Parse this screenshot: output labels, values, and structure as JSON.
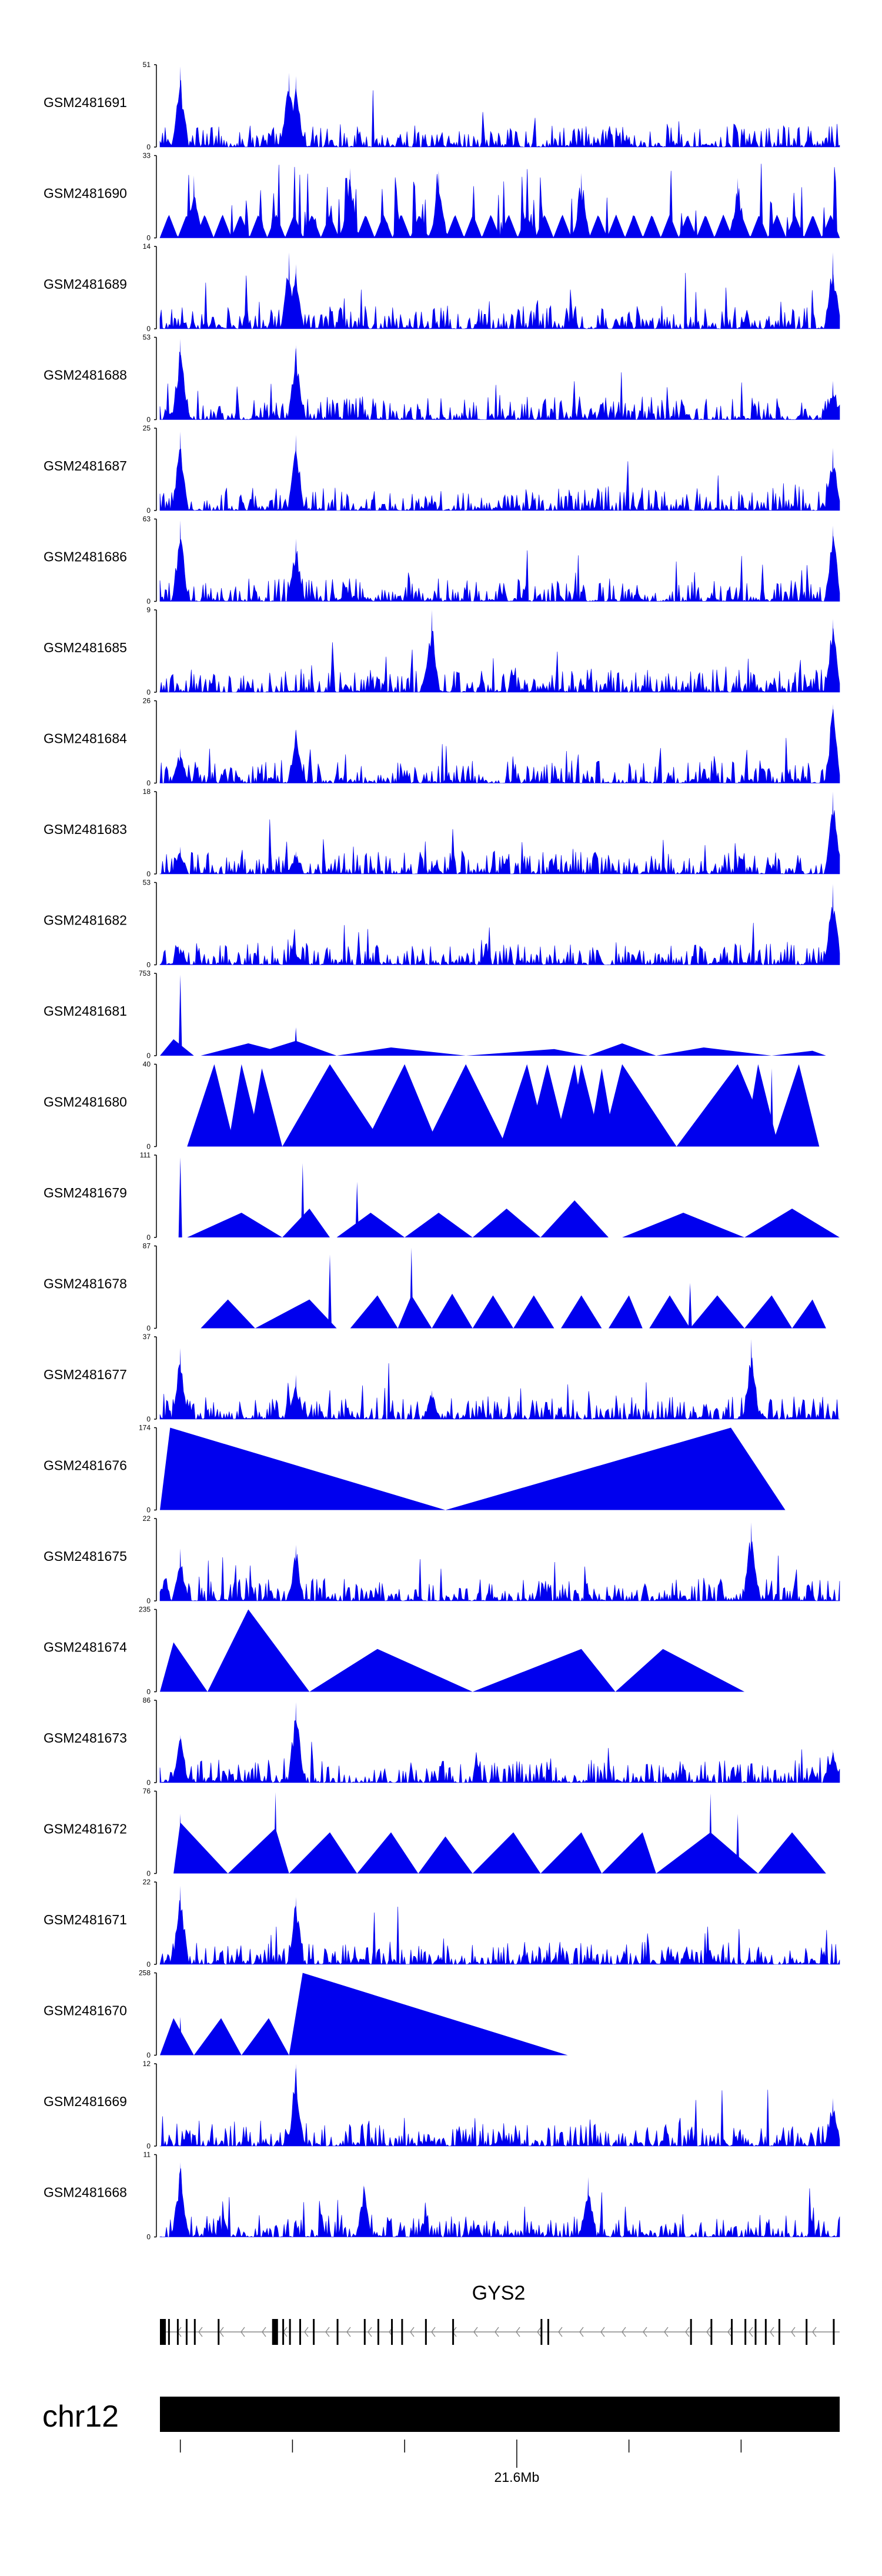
{
  "chart_data": {
    "type": "area",
    "title": "",
    "xlabel": "chr12",
    "ylabel": "",
    "fill_color": "#0000ee",
    "series": [
      {
        "name": "GSM2481691",
        "ymax": 51,
        "peaks": [
          [
            0.03,
            50
          ],
          [
            0.19,
            46
          ],
          [
            0.2,
            44
          ]
        ]
      },
      {
        "name": "GSM2481690",
        "ymax": 33,
        "peaks": [
          [
            0.05,
            25
          ],
          [
            0.28,
            28
          ],
          [
            0.41,
            27
          ],
          [
            0.62,
            26
          ],
          [
            0.85,
            24
          ]
        ]
      },
      {
        "name": "GSM2481689",
        "ymax": 14,
        "peaks": [
          [
            0.19,
            13
          ],
          [
            0.2,
            11
          ],
          [
            0.99,
            13
          ]
        ]
      },
      {
        "name": "GSM2481688",
        "ymax": 53,
        "peaks": [
          [
            0.03,
            52
          ],
          [
            0.2,
            48
          ],
          [
            0.99,
            25
          ]
        ]
      },
      {
        "name": "GSM2481687",
        "ymax": 25,
        "peaks": [
          [
            0.03,
            24
          ],
          [
            0.2,
            23
          ],
          [
            0.99,
            19
          ]
        ]
      },
      {
        "name": "GSM2481686",
        "ymax": 63,
        "peaks": [
          [
            0.03,
            62
          ],
          [
            0.2,
            48
          ],
          [
            0.99,
            58
          ]
        ]
      },
      {
        "name": "GSM2481685",
        "ymax": 9,
        "peaks": [
          [
            0.4,
            9
          ],
          [
            0.99,
            8
          ]
        ]
      },
      {
        "name": "GSM2481684",
        "ymax": 26,
        "peaks": [
          [
            0.03,
            11
          ],
          [
            0.2,
            17
          ],
          [
            0.99,
            25
          ]
        ]
      },
      {
        "name": "GSM2481683",
        "ymax": 18,
        "peaks": [
          [
            0.03,
            6
          ],
          [
            0.2,
            5
          ],
          [
            0.99,
            18
          ]
        ]
      },
      {
        "name": "GSM2481682",
        "ymax": 53,
        "peaks": [
          [
            0.03,
            11
          ],
          [
            0.2,
            8
          ],
          [
            0.99,
            52
          ]
        ]
      },
      {
        "name": "GSM2481681",
        "ymax": 753,
        "peaks": [
          [
            0.03,
            740
          ],
          [
            0.2,
            260
          ]
        ]
      },
      {
        "name": "GSM2481680",
        "ymax": 40,
        "peaks": [
          [
            0.08,
            38
          ],
          [
            0.25,
            38
          ],
          [
            0.68,
            38
          ],
          [
            0.9,
            38
          ]
        ]
      },
      {
        "name": "GSM2481679",
        "ymax": 111,
        "peaks": [
          [
            0.03,
            108
          ],
          [
            0.21,
            100
          ],
          [
            0.29,
            75
          ],
          [
            0.61,
            40
          ]
        ]
      },
      {
        "name": "GSM2481678",
        "ymax": 87,
        "peaks": [
          [
            0.25,
            78
          ],
          [
            0.37,
            85
          ],
          [
            0.78,
            48
          ]
        ]
      },
      {
        "name": "GSM2481677",
        "ymax": 37,
        "peaks": [
          [
            0.03,
            32
          ],
          [
            0.2,
            20
          ],
          [
            0.4,
            13
          ],
          [
            0.87,
            36
          ]
        ]
      },
      {
        "name": "GSM2481676",
        "ymax": 174,
        "peaks": [
          [
            0.03,
            170
          ],
          [
            0.84,
            170
          ]
        ]
      },
      {
        "name": "GSM2481675",
        "ymax": 22,
        "peaks": [
          [
            0.03,
            14
          ],
          [
            0.2,
            15
          ],
          [
            0.87,
            21
          ]
        ]
      },
      {
        "name": "GSM2481674",
        "ymax": 235,
        "peaks": [
          [
            0.13,
            230
          ],
          [
            0.32,
            120
          ],
          [
            0.62,
            120
          ],
          [
            0.74,
            120
          ]
        ]
      },
      {
        "name": "GSM2481673",
        "ymax": 86,
        "peaks": [
          [
            0.03,
            50
          ],
          [
            0.2,
            84
          ],
          [
            0.99,
            35
          ]
        ]
      },
      {
        "name": "GSM2481672",
        "ymax": 76,
        "peaks": [
          [
            0.03,
            55
          ],
          [
            0.17,
            75
          ],
          [
            0.81,
            74
          ],
          [
            0.85,
            55
          ]
        ]
      },
      {
        "name": "GSM2481671",
        "ymax": 22,
        "peaks": [
          [
            0.03,
            21
          ],
          [
            0.2,
            18
          ]
        ]
      },
      {
        "name": "GSM2481670",
        "ymax": 258,
        "peaks": [
          [
            0.03,
            120
          ],
          [
            0.21,
            255
          ]
        ]
      },
      {
        "name": "GSM2481669",
        "ymax": 12,
        "peaks": [
          [
            0.2,
            12
          ],
          [
            0.99,
            7
          ]
        ]
      },
      {
        "name": "GSM2481668",
        "ymax": 11,
        "peaks": [
          [
            0.03,
            10
          ],
          [
            0.3,
            7
          ],
          [
            0.63,
            8
          ]
        ]
      }
    ],
    "gene": {
      "name": "GYS2",
      "strand": "-"
    },
    "chromosome": {
      "name": "chr12",
      "position_label": "21.6Mb"
    }
  }
}
